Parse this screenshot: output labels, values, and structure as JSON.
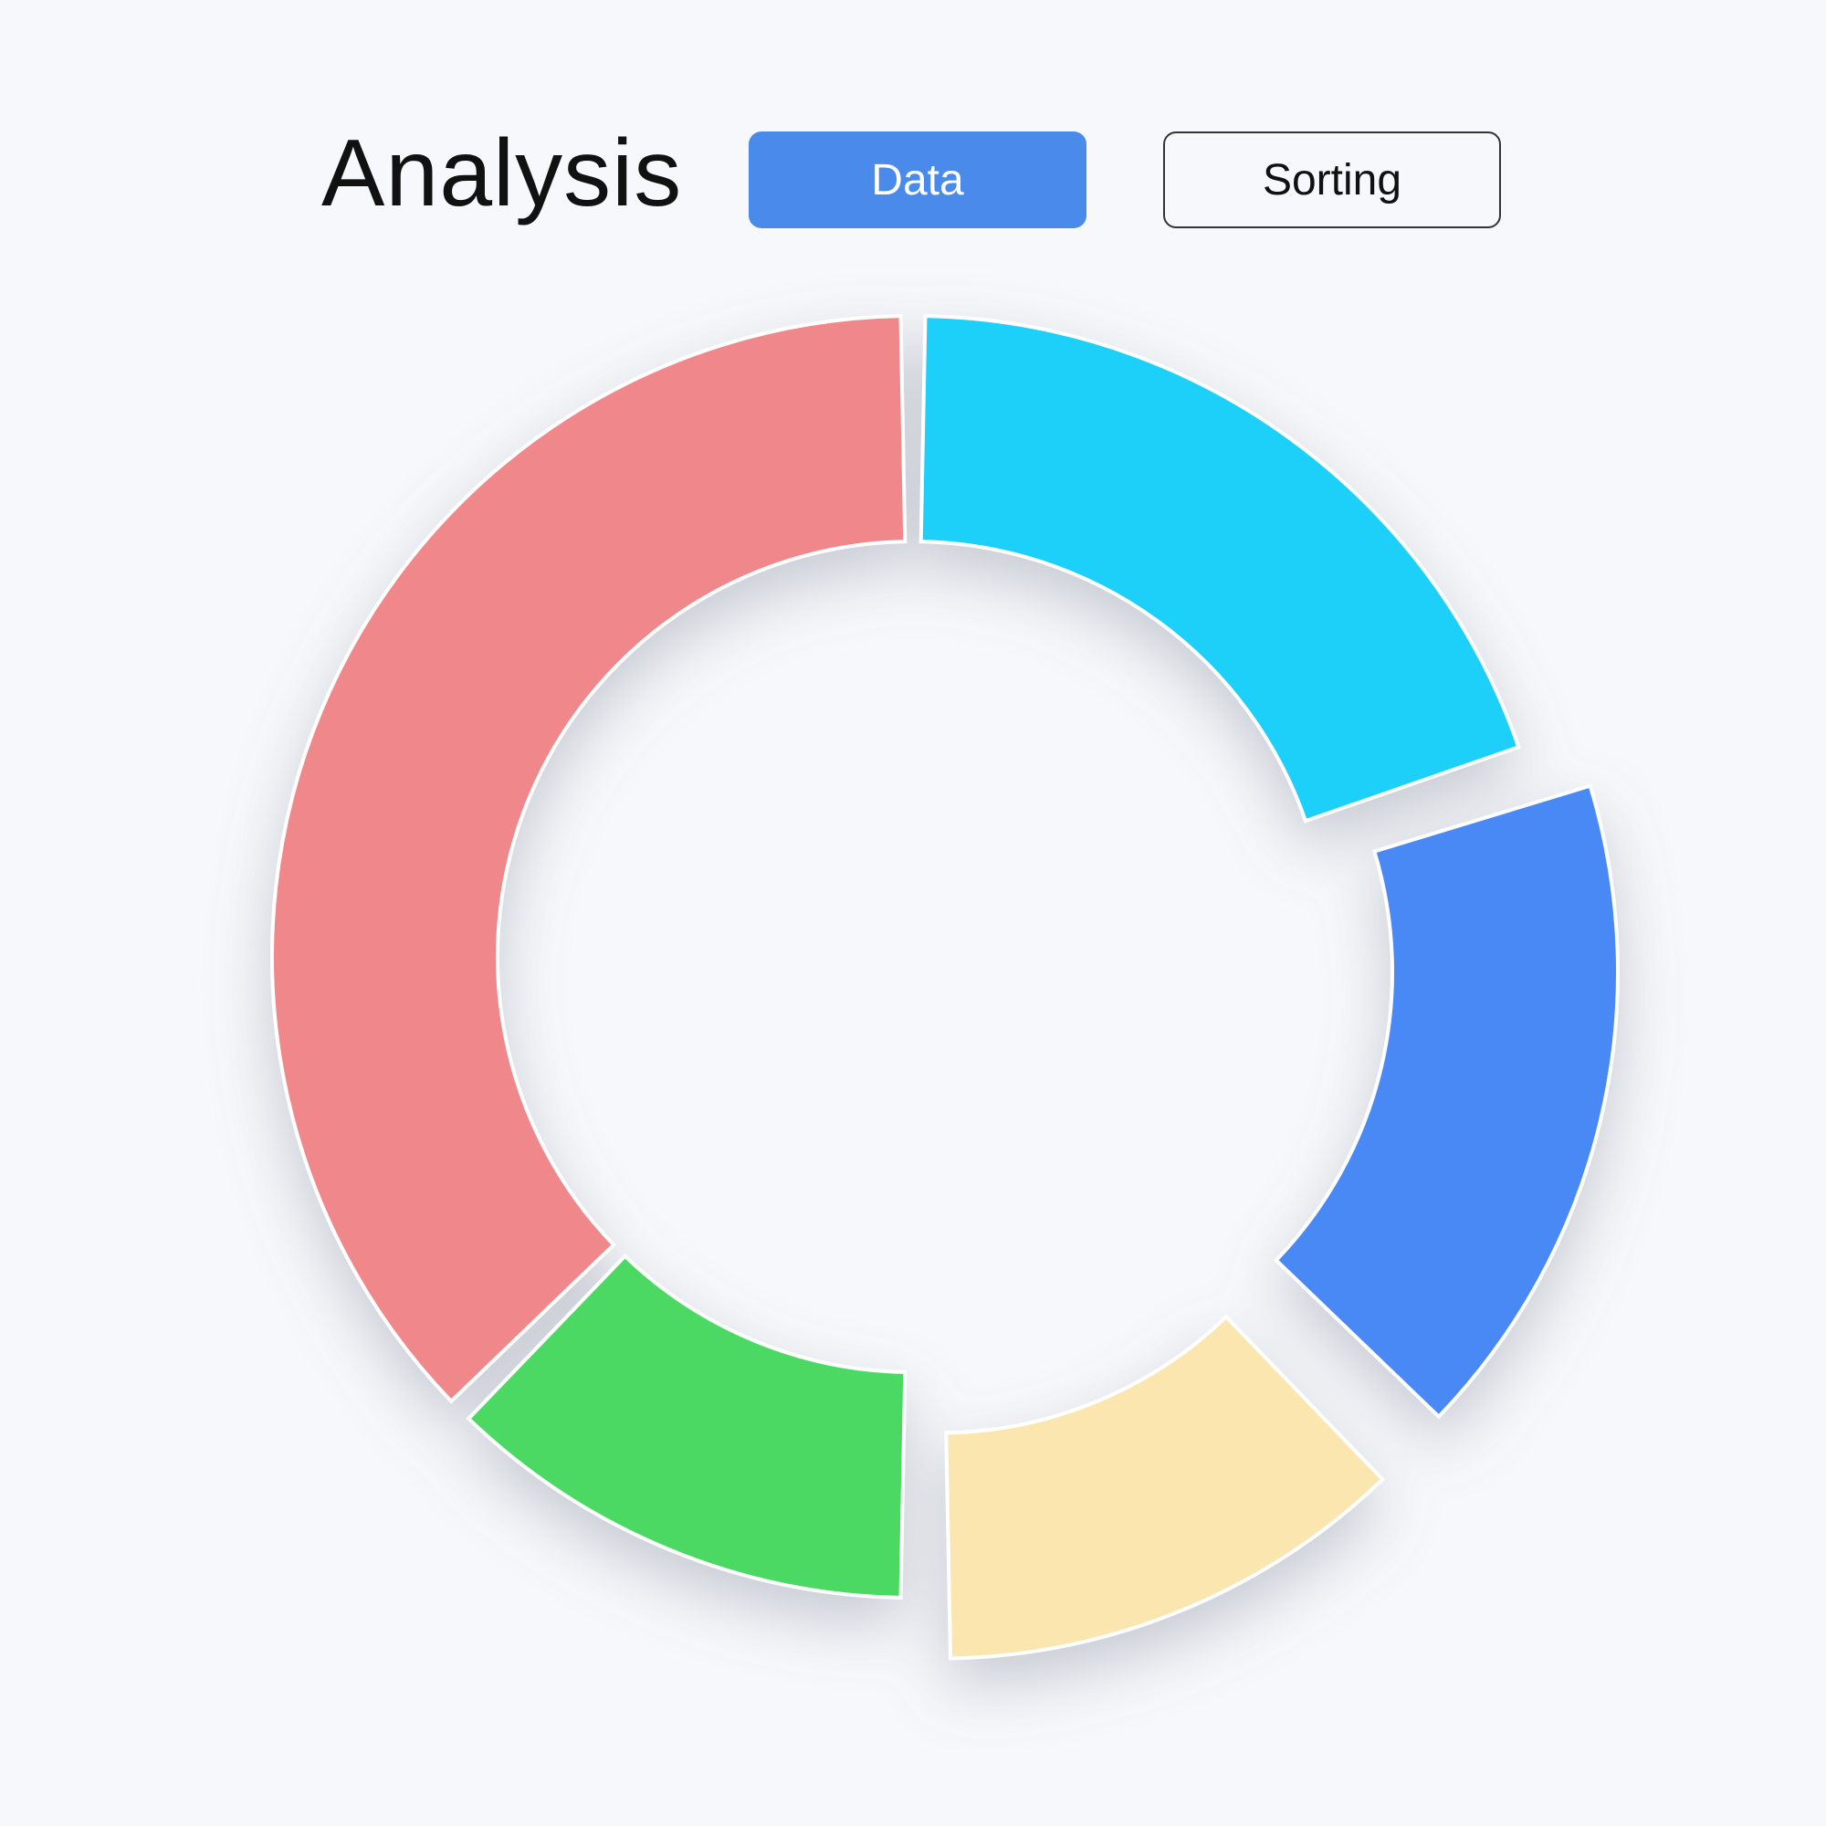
{
  "page": {
    "title": "Analysis",
    "background": "#f6f8fb"
  },
  "tabs": [
    {
      "label": "Data",
      "active": true,
      "color": "#4a8aea",
      "text_color": "#ffffff"
    },
    {
      "label": "Sorting",
      "active": false,
      "border_color": "#333333",
      "text_color": "#111111"
    }
  ],
  "chart_data": {
    "type": "pie",
    "style": "donut",
    "title": "",
    "legend": "none",
    "slices": [
      {
        "value": 20,
        "color": "#1dd0fa",
        "exploded": false
      },
      {
        "value": 17.5,
        "color": "#4889f5",
        "exploded": true
      },
      {
        "value": 12.5,
        "color": "#fce6b0",
        "exploded": true
      },
      {
        "value": 12.5,
        "color": "#4cd963",
        "exploded": false
      },
      {
        "value": 37.5,
        "color": "#f0888b",
        "exploded": false
      }
    ]
  }
}
